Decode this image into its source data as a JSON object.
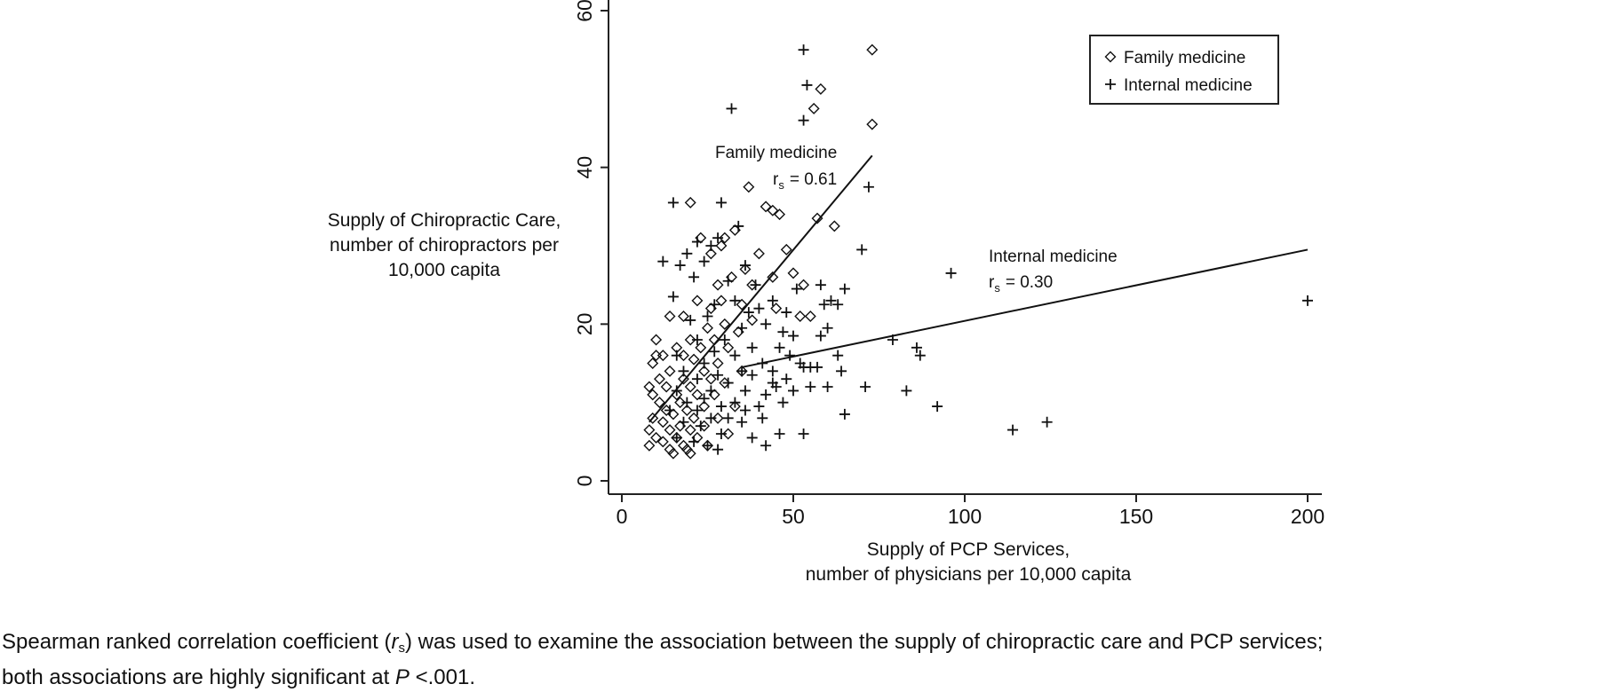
{
  "chart_data": {
    "type": "scatter",
    "title": "",
    "xlabel": [
      "Supply of PCP Services,",
      "number of physicians per 10,000 capita"
    ],
    "ylabel": [
      "Supply of Chiropractic Care,",
      "number of chiropractors per",
      "10,000 capita"
    ],
    "xlim": [
      0,
      200
    ],
    "ylim": [
      0,
      60
    ],
    "x_ticks": [
      "0",
      "50",
      "100",
      "150",
      "200"
    ],
    "y_ticks": [
      "0",
      "20",
      "40",
      "60"
    ],
    "grid": false,
    "legend_position": "top-right",
    "series": [
      {
        "name": "Family medicine",
        "marker": "diamond",
        "color": "#111111",
        "points": [
          [
            73,
            55
          ],
          [
            58,
            50
          ],
          [
            56,
            47.5
          ],
          [
            73,
            45.5
          ],
          [
            37,
            37.5
          ],
          [
            20,
            35.5
          ],
          [
            44,
            34.5
          ],
          [
            42,
            35
          ],
          [
            46,
            34
          ],
          [
            57,
            33.5
          ],
          [
            23,
            31
          ],
          [
            33,
            32
          ],
          [
            62,
            32.5
          ],
          [
            30,
            31
          ],
          [
            29,
            30
          ],
          [
            26,
            29
          ],
          [
            40,
            29
          ],
          [
            48,
            29.5
          ],
          [
            36,
            27
          ],
          [
            44,
            26
          ],
          [
            50,
            26.5
          ],
          [
            32,
            26
          ],
          [
            38,
            25
          ],
          [
            28,
            25
          ],
          [
            53,
            25
          ],
          [
            22,
            23
          ],
          [
            29,
            23
          ],
          [
            35,
            22.5
          ],
          [
            26,
            22
          ],
          [
            45,
            22
          ],
          [
            52,
            21
          ],
          [
            55,
            21
          ],
          [
            18,
            21
          ],
          [
            14,
            21
          ],
          [
            30,
            20
          ],
          [
            38,
            20.5
          ],
          [
            25,
            19.5
          ],
          [
            34,
            19
          ],
          [
            20,
            18
          ],
          [
            27,
            18
          ],
          [
            10,
            18
          ],
          [
            16,
            17
          ],
          [
            12,
            16
          ],
          [
            23,
            17
          ],
          [
            31,
            17
          ],
          [
            10,
            16
          ],
          [
            18,
            16
          ],
          [
            21,
            15.5
          ],
          [
            28,
            15
          ],
          [
            9,
            15
          ],
          [
            14,
            14
          ],
          [
            24,
            14
          ],
          [
            35,
            14
          ],
          [
            11,
            13
          ],
          [
            18,
            13
          ],
          [
            26,
            13
          ],
          [
            30,
            12.5
          ],
          [
            8,
            12
          ],
          [
            13,
            12
          ],
          [
            20,
            12
          ],
          [
            9,
            11
          ],
          [
            16,
            11
          ],
          [
            22,
            11
          ],
          [
            27,
            11
          ],
          [
            11,
            10
          ],
          [
            17,
            10
          ],
          [
            24,
            9.5
          ],
          [
            33,
            9.5
          ],
          [
            13,
            9
          ],
          [
            19,
            9
          ],
          [
            9,
            8
          ],
          [
            15,
            8.5
          ],
          [
            21,
            8
          ],
          [
            28,
            8
          ],
          [
            12,
            7.5
          ],
          [
            17,
            7
          ],
          [
            24,
            7
          ],
          [
            8,
            6.5
          ],
          [
            14,
            6.5
          ],
          [
            20,
            6.5
          ],
          [
            31,
            6
          ],
          [
            10,
            5.5
          ],
          [
            16,
            5.5
          ],
          [
            22,
            5.5
          ],
          [
            12,
            5
          ],
          [
            18,
            4.5
          ],
          [
            25,
            4.5
          ],
          [
            8,
            4.5
          ],
          [
            14,
            4
          ],
          [
            19,
            4
          ],
          [
            15,
            3.5
          ],
          [
            20,
            3.5
          ]
        ]
      },
      {
        "name": "Internal medicine",
        "marker": "plus",
        "color": "#111111",
        "points": [
          [
            53,
            55
          ],
          [
            54,
            50.5
          ],
          [
            32,
            47.5
          ],
          [
            53,
            46
          ],
          [
            72,
            37.5
          ],
          [
            15,
            35.5
          ],
          [
            29,
            35.5
          ],
          [
            34,
            32.5
          ],
          [
            70,
            29.5
          ],
          [
            26,
            30
          ],
          [
            28,
            31
          ],
          [
            22,
            30.5
          ],
          [
            19,
            29
          ],
          [
            24,
            28
          ],
          [
            12,
            28
          ],
          [
            17,
            27.5
          ],
          [
            36,
            27.5
          ],
          [
            96,
            26.5
          ],
          [
            21,
            26
          ],
          [
            31,
            25.5
          ],
          [
            58,
            25
          ],
          [
            65,
            24.5
          ],
          [
            51,
            24.5
          ],
          [
            15,
            23.5
          ],
          [
            44,
            23
          ],
          [
            61,
            23
          ],
          [
            63,
            22.5
          ],
          [
            59,
            22.5
          ],
          [
            40,
            22
          ],
          [
            48,
            21.5
          ],
          [
            25,
            21
          ],
          [
            20,
            20.5
          ],
          [
            42,
            20
          ],
          [
            35,
            19.5
          ],
          [
            60,
            19.5
          ],
          [
            47,
            19
          ],
          [
            50,
            18.5
          ],
          [
            22,
            18
          ],
          [
            30,
            18
          ],
          [
            79,
            18
          ],
          [
            86,
            17
          ],
          [
            38,
            17
          ],
          [
            46,
            17
          ],
          [
            27,
            16.5
          ],
          [
            87,
            16
          ],
          [
            16,
            16
          ],
          [
            33,
            16
          ],
          [
            52,
            15
          ],
          [
            41,
            15
          ],
          [
            24,
            15
          ],
          [
            57,
            14.5
          ],
          [
            64,
            14
          ],
          [
            44,
            14
          ],
          [
            35,
            14
          ],
          [
            18,
            14
          ],
          [
            53,
            14.5
          ],
          [
            28,
            13.5
          ],
          [
            38,
            13.5
          ],
          [
            48,
            13
          ],
          [
            22,
            13
          ],
          [
            31,
            12.5
          ],
          [
            45,
            12
          ],
          [
            55,
            12
          ],
          [
            60,
            12
          ],
          [
            71,
            12
          ],
          [
            50,
            11.5
          ],
          [
            16,
            11.5
          ],
          [
            26,
            11.5
          ],
          [
            36,
            11.5
          ],
          [
            83,
            11.5
          ],
          [
            42,
            11
          ],
          [
            24,
            10.5
          ],
          [
            33,
            10
          ],
          [
            47,
            10
          ],
          [
            19,
            10
          ],
          [
            40,
            9.5
          ],
          [
            29,
            9.5
          ],
          [
            92,
            9.5
          ],
          [
            14,
            9
          ],
          [
            22,
            9
          ],
          [
            36,
            9
          ],
          [
            65,
            8.5
          ],
          [
            31,
            8
          ],
          [
            26,
            8
          ],
          [
            41,
            8
          ],
          [
            18,
            7.5
          ],
          [
            23,
            7
          ],
          [
            35,
            7.5
          ],
          [
            124,
            7.5
          ],
          [
            114,
            6.5
          ],
          [
            46,
            6
          ],
          [
            53,
            6
          ],
          [
            29,
            6
          ],
          [
            38,
            5.5
          ],
          [
            16,
            5.5
          ],
          [
            21,
            5
          ],
          [
            42,
            4.5
          ],
          [
            25,
            4.5
          ],
          [
            28,
            4
          ],
          [
            200,
            23
          ],
          [
            55,
            14.5
          ],
          [
            44,
            12.5
          ],
          [
            63,
            16
          ],
          [
            37,
            21.5
          ],
          [
            33,
            23
          ],
          [
            27,
            22.5
          ],
          [
            58,
            18.5
          ],
          [
            49,
            16
          ],
          [
            39,
            25
          ]
        ]
      }
    ],
    "fit_lines": [
      {
        "series": "Family medicine",
        "from": [
          8,
          7.5
        ],
        "to": [
          73,
          41.5
        ],
        "label": "Family medicine",
        "stat_symbol": "r",
        "stat_sub": "s",
        "stat_value": "= 0.61"
      },
      {
        "series": "Internal medicine",
        "from": [
          35,
          14.5
        ],
        "to": [
          200,
          29.5
        ],
        "label": "Internal medicine",
        "stat_symbol": "r",
        "stat_sub": "s",
        "stat_value": "= 0.30"
      }
    ]
  },
  "caption": {
    "line1_pre": "Spearman ranked correlation coefficient (",
    "symbol": "r",
    "symbol_sub": "s",
    "line1_post": ") was used to examine the association between the supply of chiropractic care and PCP services;",
    "line2_pre": "both associations are highly significant at ",
    "p_symbol": "P",
    "line2_post": " <.001."
  }
}
